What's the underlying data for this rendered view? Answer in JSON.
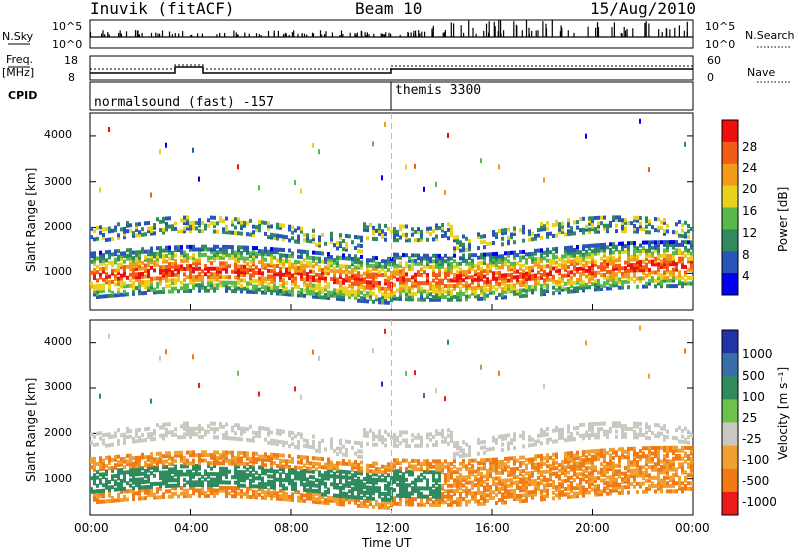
{
  "header": {
    "site": "Inuvik (fitACF)",
    "beam": "Beam 10",
    "date": "15/Aug/2010"
  },
  "top_panel": {
    "left_label": "N.Sky",
    "left_ticks": [
      "10^5",
      "10^0"
    ],
    "right_ticks": [
      "10^5",
      "10^0"
    ],
    "right_label": "N.Search"
  },
  "freq_panel": {
    "left_label": "Freq.",
    "left_unit": "[MHz]",
    "left_ticks": [
      "18",
      "8"
    ],
    "right_ticks": [
      "60",
      "0"
    ],
    "right_label": "Nave"
  },
  "cpid_panel": {
    "label": "CPID",
    "segments": [
      "normalsound (fast) -157",
      "themis 3300"
    ]
  },
  "chart_data": [
    {
      "type": "heatmap",
      "name": "power",
      "ylabel": "Slant Range [km]",
      "yticks": [
        "4000",
        "3000",
        "2000",
        "1000"
      ],
      "ylim": [
        200,
        4500
      ],
      "colorbar_label": "Power [dB]",
      "colorbar_ticks": [
        "28",
        "24",
        "20",
        "16",
        "12",
        "8",
        "4"
      ],
      "colors": [
        "#0000ee",
        "#2a55b8",
        "#2f8a5e",
        "#59b84a",
        "#e8d21e",
        "#f29a1a",
        "#f25c14",
        "#ee1010"
      ]
    },
    {
      "type": "heatmap",
      "name": "velocity",
      "ylabel": "Slant Range [km]",
      "yticks": [
        "4000",
        "3000",
        "2000",
        "1000"
      ],
      "ylim": [
        200,
        4500
      ],
      "colorbar_label": "Velocity [m s⁻¹]",
      "colorbar_ticks": [
        "1000",
        "500",
        "100",
        "25",
        "-25",
        "-100",
        "-500",
        "-1000"
      ],
      "colors": [
        "#2233aa",
        "#3a6ea8",
        "#2f8a5e",
        "#6cc24a",
        "#c9c9c2",
        "#f0a030",
        "#f27a14",
        "#ee1a1a"
      ]
    }
  ],
  "x_axis": {
    "ticks": [
      "00:00",
      "04:00",
      "08:00",
      "12:00",
      "16:00",
      "20:00",
      "00:00"
    ],
    "label": "Time UT"
  }
}
